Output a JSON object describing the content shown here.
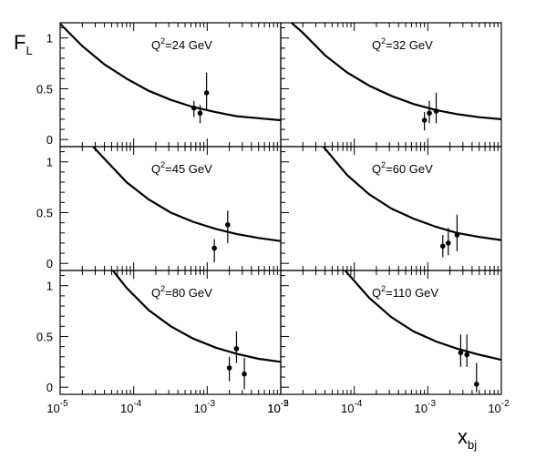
{
  "chart_data": {
    "type": "scatter",
    "layout": "3x2 grid",
    "ylabel": "F",
    "ylabel_sub": "L",
    "xlabel": "x",
    "xlabel_sub": "bj",
    "x_scale": "log",
    "xlim": [
      1e-05,
      0.01
    ],
    "ylim": [
      -0.07,
      1.15
    ],
    "y_ticks": [
      "0",
      "0.5",
      "1"
    ],
    "y_tick_values": [
      0,
      0.5,
      1
    ],
    "x_ticks": [
      "10",
      "10",
      "10",
      "10"
    ],
    "x_tick_exps": [
      "-5",
      "-4",
      "-3",
      "-2"
    ],
    "x_tick_values": [
      1e-05,
      0.0001,
      0.001,
      0.01
    ],
    "panels": [
      {
        "label_pre": "Q",
        "label_sup": "2",
        "label_post": "=24 GeV",
        "curve": [
          [
            1e-05,
            1.14
          ],
          [
            2e-05,
            0.92
          ],
          [
            4e-05,
            0.74
          ],
          [
            8e-05,
            0.6
          ],
          [
            0.00016,
            0.48
          ],
          [
            0.00032,
            0.39
          ],
          [
            0.00064,
            0.32
          ],
          [
            0.0013,
            0.27
          ],
          [
            0.0025,
            0.23
          ],
          [
            0.005,
            0.21
          ],
          [
            0.01,
            0.19
          ]
        ],
        "points": [
          [
            0.00066,
            0.31,
            0.38,
            0.22
          ],
          [
            0.0008,
            0.26,
            0.34,
            0.16
          ],
          [
            0.00098,
            0.46,
            0.66,
            0.28
          ]
        ]
      },
      {
        "label_pre": "Q",
        "label_sup": "2",
        "label_post": "=32 GeV",
        "curve": [
          [
            1.4e-05,
            1.15
          ],
          [
            2e-05,
            1.05
          ],
          [
            4e-05,
            0.83
          ],
          [
            8e-05,
            0.66
          ],
          [
            0.00016,
            0.53
          ],
          [
            0.00032,
            0.43
          ],
          [
            0.00064,
            0.35
          ],
          [
            0.0013,
            0.29
          ],
          [
            0.0025,
            0.25
          ],
          [
            0.005,
            0.22
          ],
          [
            0.01,
            0.2
          ]
        ],
        "points": [
          [
            0.0009,
            0.19,
            0.27,
            0.09
          ],
          [
            0.00105,
            0.26,
            0.38,
            0.16
          ],
          [
            0.0013,
            0.28,
            0.46,
            0.16
          ]
        ]
      },
      {
        "label_pre": "Q",
        "label_sup": "2",
        "label_post": "=45 GeV",
        "curve": [
          [
            2.8e-05,
            1.15
          ],
          [
            4e-05,
            1.03
          ],
          [
            8e-05,
            0.8
          ],
          [
            0.00016,
            0.63
          ],
          [
            0.00032,
            0.5
          ],
          [
            0.00064,
            0.41
          ],
          [
            0.0013,
            0.34
          ],
          [
            0.0025,
            0.29
          ],
          [
            0.005,
            0.25
          ],
          [
            0.01,
            0.22
          ]
        ],
        "points": [
          [
            0.00125,
            0.15,
            0.24,
            0.01
          ],
          [
            0.0019,
            0.38,
            0.52,
            0.2
          ]
        ]
      },
      {
        "label_pre": "Q",
        "label_sup": "2",
        "label_post": "=60 GeV",
        "curve": [
          [
            3.8e-05,
            1.15
          ],
          [
            8e-05,
            0.87
          ],
          [
            0.00016,
            0.68
          ],
          [
            0.00032,
            0.54
          ],
          [
            0.00064,
            0.44
          ],
          [
            0.0013,
            0.36
          ],
          [
            0.0025,
            0.3
          ],
          [
            0.005,
            0.26
          ],
          [
            0.01,
            0.23
          ]
        ],
        "points": [
          [
            0.0016,
            0.17,
            0.28,
            0.06
          ],
          [
            0.0019,
            0.2,
            0.35,
            0.08
          ],
          [
            0.0025,
            0.28,
            0.48,
            0.12
          ]
        ]
      },
      {
        "label_pre": "Q",
        "label_sup": "2",
        "label_post": "=80 GeV",
        "curve": [
          [
            5.2e-05,
            1.15
          ],
          [
            8e-05,
            0.98
          ],
          [
            0.00016,
            0.76
          ],
          [
            0.00032,
            0.6
          ],
          [
            0.00064,
            0.48
          ],
          [
            0.0013,
            0.39
          ],
          [
            0.0025,
            0.33
          ],
          [
            0.005,
            0.28
          ],
          [
            0.01,
            0.25
          ]
        ],
        "points": [
          [
            0.002,
            0.19,
            0.3,
            0.06
          ],
          [
            0.0025,
            0.38,
            0.55,
            0.24
          ],
          [
            0.0032,
            0.13,
            0.29,
            -0.02
          ]
        ]
      },
      {
        "label_pre": "Q",
        "label_sup": "2",
        "label_post": "=110 GeV",
        "curve": [
          [
            7.5e-05,
            1.15
          ],
          [
            0.00016,
            0.88
          ],
          [
            0.00032,
            0.69
          ],
          [
            0.00064,
            0.55
          ],
          [
            0.0013,
            0.45
          ],
          [
            0.0025,
            0.38
          ],
          [
            0.005,
            0.32
          ],
          [
            0.01,
            0.27
          ]
        ],
        "points": [
          [
            0.0028,
            0.34,
            0.52,
            0.2
          ],
          [
            0.0034,
            0.32,
            0.52,
            0.2
          ],
          [
            0.0046,
            0.03,
            0.24,
            -0.05
          ]
        ]
      }
    ]
  }
}
